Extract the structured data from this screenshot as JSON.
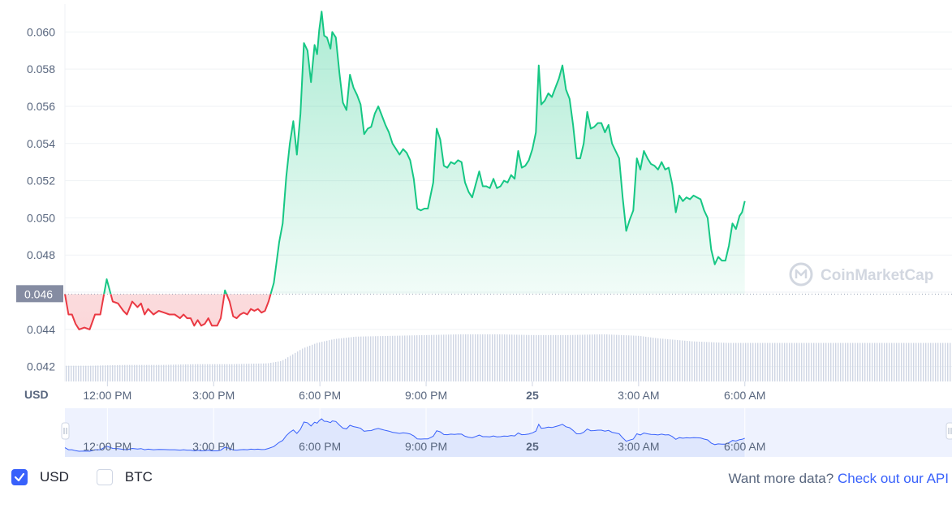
{
  "currency_label": "USD",
  "current_price_label": "0.046",
  "watermark": "CoinMarketCap",
  "legend": {
    "usd_label": "USD",
    "usd_checked": true,
    "btc_label": "BTC",
    "btc_checked": false
  },
  "footer": {
    "prompt": "Want more data?",
    "link_text": "Check out our API"
  },
  "colors": {
    "up": "#16c784",
    "down": "#ea3943",
    "accent": "#3861fb",
    "volume": "#cfd6e4",
    "navigator_fill": "#dfe7fd"
  },
  "chart_data": {
    "type": "line",
    "title": "",
    "ylabel": "",
    "xlabel": "",
    "currency": "USD",
    "reference_price": 0.0459,
    "ylim": [
      0.0412,
      0.0615
    ],
    "xlim": [
      10.8,
      35.85
    ],
    "y_ticks": [
      "0.042",
      "0.044",
      "0.046",
      "0.048",
      "0.050",
      "0.052",
      "0.054",
      "0.056",
      "0.058",
      "0.060"
    ],
    "x_ticks": [
      {
        "x": 12,
        "label": "12:00 PM"
      },
      {
        "x": 15,
        "label": "3:00 PM"
      },
      {
        "x": 18,
        "label": "6:00 PM"
      },
      {
        "x": 21,
        "label": "9:00 PM"
      },
      {
        "x": 24,
        "label": "25"
      },
      {
        "x": 27,
        "label": "3:00 AM"
      },
      {
        "x": 30,
        "label": "6:00 AM"
      }
    ],
    "x_unit": "hour of day (24 = midnight, day 25)",
    "series": [
      {
        "name": "USD",
        "points": [
          [
            10.8,
            0.0459
          ],
          [
            10.9,
            0.0448
          ],
          [
            11.0,
            0.0448
          ],
          [
            11.1,
            0.0443
          ],
          [
            11.2,
            0.044
          ],
          [
            11.35,
            0.0441
          ],
          [
            11.5,
            0.044
          ],
          [
            11.65,
            0.0448
          ],
          [
            11.8,
            0.0448
          ],
          [
            11.98,
            0.0467
          ],
          [
            12.15,
            0.0455
          ],
          [
            12.3,
            0.0454
          ],
          [
            12.45,
            0.045
          ],
          [
            12.55,
            0.0448
          ],
          [
            12.7,
            0.0455
          ],
          [
            12.85,
            0.0452
          ],
          [
            12.95,
            0.0454
          ],
          [
            13.05,
            0.0448
          ],
          [
            13.15,
            0.0451
          ],
          [
            13.3,
            0.0448
          ],
          [
            13.45,
            0.045
          ],
          [
            13.6,
            0.0449
          ],
          [
            13.75,
            0.0448
          ],
          [
            13.9,
            0.0448
          ],
          [
            14.05,
            0.0446
          ],
          [
            14.15,
            0.0448
          ],
          [
            14.25,
            0.0446
          ],
          [
            14.35,
            0.0446
          ],
          [
            14.45,
            0.0442
          ],
          [
            14.55,
            0.0445
          ],
          [
            14.65,
            0.0442
          ],
          [
            14.75,
            0.0443
          ],
          [
            14.85,
            0.0446
          ],
          [
            14.95,
            0.0442
          ],
          [
            15.1,
            0.0442
          ],
          [
            15.2,
            0.0446
          ],
          [
            15.32,
            0.0461
          ],
          [
            15.45,
            0.0455
          ],
          [
            15.55,
            0.0447
          ],
          [
            15.65,
            0.0446
          ],
          [
            15.75,
            0.0448
          ],
          [
            15.85,
            0.0449
          ],
          [
            15.95,
            0.0448
          ],
          [
            16.05,
            0.0451
          ],
          [
            16.15,
            0.045
          ],
          [
            16.25,
            0.0451
          ],
          [
            16.35,
            0.0449
          ],
          [
            16.45,
            0.045
          ],
          [
            16.55,
            0.0455
          ],
          [
            16.7,
            0.0465
          ],
          [
            16.85,
            0.0487
          ],
          [
            16.95,
            0.0497
          ],
          [
            17.05,
            0.0522
          ],
          [
            17.15,
            0.054
          ],
          [
            17.25,
            0.0552
          ],
          [
            17.35,
            0.0534
          ],
          [
            17.45,
            0.0556
          ],
          [
            17.55,
            0.0594
          ],
          [
            17.65,
            0.059
          ],
          [
            17.75,
            0.0573
          ],
          [
            17.85,
            0.0593
          ],
          [
            17.92,
            0.0588
          ],
          [
            17.98,
            0.0601
          ],
          [
            18.05,
            0.0611
          ],
          [
            18.12,
            0.0598
          ],
          [
            18.2,
            0.0597
          ],
          [
            18.3,
            0.0591
          ],
          [
            18.35,
            0.06
          ],
          [
            18.45,
            0.0597
          ],
          [
            18.55,
            0.0578
          ],
          [
            18.65,
            0.0562
          ],
          [
            18.75,
            0.0558
          ],
          [
            18.85,
            0.0577
          ],
          [
            18.95,
            0.057
          ],
          [
            19.05,
            0.0566
          ],
          [
            19.15,
            0.0561
          ],
          [
            19.25,
            0.0545
          ],
          [
            19.35,
            0.0548
          ],
          [
            19.45,
            0.0549
          ],
          [
            19.55,
            0.0556
          ],
          [
            19.65,
            0.056
          ],
          [
            19.75,
            0.0555
          ],
          [
            19.85,
            0.055
          ],
          [
            19.95,
            0.0546
          ],
          [
            20.05,
            0.054
          ],
          [
            20.15,
            0.0537
          ],
          [
            20.25,
            0.0534
          ],
          [
            20.35,
            0.0537
          ],
          [
            20.45,
            0.0535
          ],
          [
            20.55,
            0.0531
          ],
          [
            20.65,
            0.0521
          ],
          [
            20.75,
            0.0505
          ],
          [
            20.85,
            0.0504
          ],
          [
            20.95,
            0.0505
          ],
          [
            21.05,
            0.0505
          ],
          [
            21.2,
            0.0519
          ],
          [
            21.3,
            0.0548
          ],
          [
            21.4,
            0.0542
          ],
          [
            21.5,
            0.0528
          ],
          [
            21.6,
            0.0527
          ],
          [
            21.7,
            0.053
          ],
          [
            21.8,
            0.0529
          ],
          [
            21.9,
            0.0531
          ],
          [
            22.0,
            0.053
          ],
          [
            22.1,
            0.0519
          ],
          [
            22.2,
            0.0514
          ],
          [
            22.3,
            0.0511
          ],
          [
            22.4,
            0.0518
          ],
          [
            22.5,
            0.0525
          ],
          [
            22.6,
            0.0517
          ],
          [
            22.7,
            0.0517
          ],
          [
            22.8,
            0.0516
          ],
          [
            22.9,
            0.0521
          ],
          [
            23.0,
            0.0516
          ],
          [
            23.1,
            0.0517
          ],
          [
            23.2,
            0.052
          ],
          [
            23.3,
            0.0519
          ],
          [
            23.4,
            0.0523
          ],
          [
            23.5,
            0.0521
          ],
          [
            23.6,
            0.0536
          ],
          [
            23.7,
            0.0527
          ],
          [
            23.8,
            0.0528
          ],
          [
            23.9,
            0.0531
          ],
          [
            24.0,
            0.0537
          ],
          [
            24.1,
            0.0546
          ],
          [
            24.18,
            0.0582
          ],
          [
            24.25,
            0.0561
          ],
          [
            24.35,
            0.0563
          ],
          [
            24.45,
            0.0567
          ],
          [
            24.55,
            0.0565
          ],
          [
            24.65,
            0.057
          ],
          [
            24.75,
            0.0575
          ],
          [
            24.85,
            0.0582
          ],
          [
            24.95,
            0.0569
          ],
          [
            25.05,
            0.0564
          ],
          [
            25.15,
            0.055
          ],
          [
            25.25,
            0.0532
          ],
          [
            25.35,
            0.0532
          ],
          [
            25.45,
            0.054
          ],
          [
            25.55,
            0.0557
          ],
          [
            25.65,
            0.0548
          ],
          [
            25.75,
            0.0549
          ],
          [
            25.85,
            0.0551
          ],
          [
            25.95,
            0.0551
          ],
          [
            26.05,
            0.0546
          ],
          [
            26.15,
            0.055
          ],
          [
            26.25,
            0.054
          ],
          [
            26.35,
            0.0536
          ],
          [
            26.45,
            0.0532
          ],
          [
            26.55,
            0.0511
          ],
          [
            26.65,
            0.0493
          ],
          [
            26.75,
            0.0499
          ],
          [
            26.85,
            0.0504
          ],
          [
            26.95,
            0.0532
          ],
          [
            27.05,
            0.0526
          ],
          [
            27.15,
            0.0536
          ],
          [
            27.25,
            0.0532
          ],
          [
            27.35,
            0.0529
          ],
          [
            27.45,
            0.0528
          ],
          [
            27.55,
            0.0526
          ],
          [
            27.65,
            0.053
          ],
          [
            27.75,
            0.0526
          ],
          [
            27.85,
            0.0527
          ],
          [
            27.95,
            0.0518
          ],
          [
            28.05,
            0.0503
          ],
          [
            28.15,
            0.0512
          ],
          [
            28.25,
            0.0509
          ],
          [
            28.35,
            0.0511
          ],
          [
            28.45,
            0.051
          ],
          [
            28.55,
            0.0512
          ],
          [
            28.65,
            0.0511
          ],
          [
            28.75,
            0.051
          ],
          [
            28.85,
            0.0504
          ],
          [
            28.95,
            0.05
          ],
          [
            29.05,
            0.0483
          ],
          [
            29.15,
            0.0475
          ],
          [
            29.25,
            0.0479
          ],
          [
            29.35,
            0.0477
          ],
          [
            29.45,
            0.0477
          ],
          [
            29.55,
            0.0485
          ],
          [
            29.65,
            0.0497
          ],
          [
            29.75,
            0.0494
          ],
          [
            29.85,
            0.0501
          ],
          [
            29.92,
            0.0503
          ],
          [
            30.0,
            0.0509
          ]
        ]
      }
    ],
    "volume": [
      [
        10.8,
        0.1
      ],
      [
        11.5,
        0.1
      ],
      [
        12.5,
        0.105
      ],
      [
        13.5,
        0.105
      ],
      [
        14.5,
        0.11
      ],
      [
        15.5,
        0.11
      ],
      [
        16.5,
        0.115
      ],
      [
        16.9,
        0.13
      ],
      [
        17.2,
        0.17
      ],
      [
        17.5,
        0.21
      ],
      [
        17.9,
        0.245
      ],
      [
        18.4,
        0.27
      ],
      [
        19.0,
        0.285
      ],
      [
        20.0,
        0.29
      ],
      [
        21.0,
        0.295
      ],
      [
        22.0,
        0.3
      ],
      [
        23.0,
        0.3
      ],
      [
        24.0,
        0.295
      ],
      [
        25.0,
        0.295
      ],
      [
        26.0,
        0.3
      ],
      [
        26.5,
        0.295
      ],
      [
        27.0,
        0.29
      ],
      [
        27.5,
        0.275
      ],
      [
        28.0,
        0.265
      ],
      [
        28.5,
        0.255
      ],
      [
        29.0,
        0.25
      ],
      [
        29.5,
        0.245
      ],
      [
        30.0,
        0.245
      ]
    ],
    "navigator_x_ticks": [
      "12:00 PM",
      "3:00 PM",
      "6:00 PM",
      "9:00 PM",
      "25",
      "3:00 AM",
      "6:00 AM"
    ],
    "grid": "horizontal",
    "watermark_position": "bottom-right"
  }
}
